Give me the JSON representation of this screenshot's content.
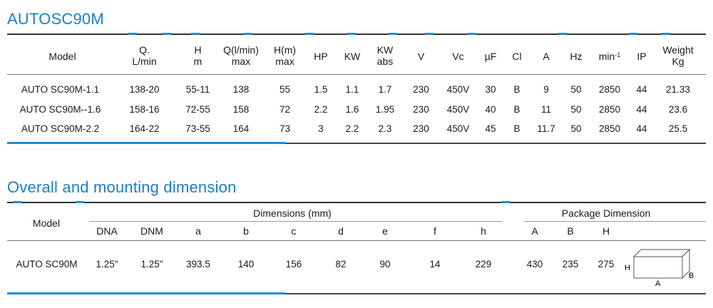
{
  "section1": {
    "title": "AUTOSC90M",
    "headers": [
      {
        "l1": "Model",
        "l2": ""
      },
      {
        "l1": "Q.",
        "l2": "L/min"
      },
      {
        "l1": "H",
        "l2": "m"
      },
      {
        "l1": "Q(l/min)",
        "l2": "max"
      },
      {
        "l1": "H(m)",
        "l2": "max"
      },
      {
        "l1": "HP",
        "l2": ""
      },
      {
        "l1": "KW",
        "l2": ""
      },
      {
        "l1": "KW",
        "l2": "abs"
      },
      {
        "l1": "V",
        "l2": ""
      },
      {
        "l1": "Vc",
        "l2": ""
      },
      {
        "l1": "µF",
        "l2": ""
      },
      {
        "l1": "Cl",
        "l2": ""
      },
      {
        "l1": "A",
        "l2": ""
      },
      {
        "l1": "Hz",
        "l2": ""
      },
      {
        "l1": "min",
        "l2": "",
        "sup": "-1"
      },
      {
        "l1": "IP",
        "l2": ""
      },
      {
        "l1": "Weight",
        "l2": "Kg"
      }
    ],
    "rows": [
      [
        "AUTO SC90M-1.1",
        "138-20",
        "55-11",
        "138",
        "55",
        "1.5",
        "1.1",
        "1.7",
        "230",
        "450V",
        "30",
        "B",
        "9",
        "50",
        "2850",
        "44",
        "21.33"
      ],
      [
        "AUTO SC90M--1.6",
        "158-16",
        "72-55",
        "158",
        "72",
        "2.2",
        "1.6",
        "1.95",
        "230",
        "450V",
        "40",
        "B",
        "11",
        "50",
        "2850",
        "44",
        "23.6"
      ],
      [
        "AUTO SC90M-2.2",
        "164-22",
        "73-55",
        "164",
        "73",
        "3",
        "2.2",
        "2.3",
        "230",
        "450V",
        "45",
        "B",
        "11.7",
        "50",
        "2850",
        "44",
        "25.5"
      ]
    ]
  },
  "section2": {
    "title": "Overall and mounting dimension",
    "model_header": "Model",
    "dimensions_header": "Dimensions (mm)",
    "package_header": "Package Dimension",
    "sub_headers": [
      "DNA",
      "DNM",
      "a",
      "b",
      "c",
      "d",
      "e",
      "f",
      "h",
      "A",
      "B",
      "H"
    ],
    "row": [
      "AUTO SC90M",
      "1.25\"",
      "1.25\"",
      "393.5",
      "140",
      "156",
      "82",
      "90",
      "14",
      "229",
      "430",
      "235",
      "275"
    ],
    "box_labels": {
      "h": "H",
      "a": "A",
      "b": "B"
    }
  },
  "colors": {
    "accent": "#1a7fc4",
    "rule": "#333333"
  }
}
